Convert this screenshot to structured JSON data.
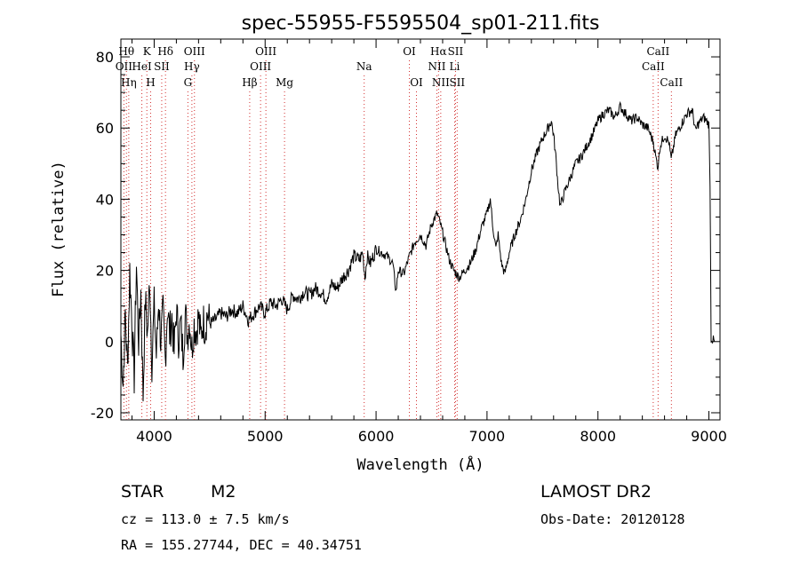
{
  "chart_data": {
    "type": "line",
    "title": "spec-55955-F5595504_sp01-211.fits",
    "xlabel": "Wavelength (Å)",
    "ylabel": "Flux (relative)",
    "xlim": [
      3700,
      9100
    ],
    "ylim": [
      -22,
      85
    ],
    "x_ticks": [
      4000,
      5000,
      6000,
      7000,
      8000,
      9000
    ],
    "y_ticks": [
      -20,
      0,
      20,
      40,
      60,
      80
    ],
    "grid": false,
    "series": [
      {
        "values": [
          [
            3700,
            2
          ],
          [
            3720,
            -12
          ],
          [
            3740,
            8
          ],
          [
            3760,
            -8
          ],
          [
            3780,
            20
          ],
          [
            3800,
            5
          ],
          [
            3820,
            -10
          ],
          [
            3840,
            22
          ],
          [
            3860,
            0
          ],
          [
            3880,
            14
          ],
          [
            3900,
            -15
          ],
          [
            3920,
            12
          ],
          [
            3940,
            2
          ],
          [
            3960,
            18
          ],
          [
            3980,
            -6
          ],
          [
            4000,
            10
          ],
          [
            4020,
            -4
          ],
          [
            4040,
            12
          ],
          [
            4060,
            0
          ],
          [
            4080,
            8
          ],
          [
            4100,
            -5
          ],
          [
            4120,
            10
          ],
          [
            4140,
            2
          ],
          [
            4160,
            7
          ],
          [
            4180,
            -3
          ],
          [
            4200,
            9
          ],
          [
            4220,
            1
          ],
          [
            4240,
            5
          ],
          [
            4260,
            -4
          ],
          [
            4280,
            8
          ],
          [
            4300,
            2
          ],
          [
            4320,
            6
          ],
          [
            4340,
            -2
          ],
          [
            4360,
            5
          ],
          [
            4380,
            3
          ],
          [
            4400,
            7
          ],
          [
            4420,
            1
          ],
          [
            4440,
            6
          ],
          [
            4460,
            4
          ],
          [
            4480,
            8
          ],
          [
            4500,
            5
          ],
          [
            4550,
            6
          ],
          [
            4600,
            8
          ],
          [
            4650,
            7
          ],
          [
            4700,
            9
          ],
          [
            4750,
            8
          ],
          [
            4800,
            10
          ],
          [
            4850,
            6
          ],
          [
            4900,
            8
          ],
          [
            4950,
            10
          ],
          [
            5000,
            8
          ],
          [
            5050,
            11
          ],
          [
            5100,
            10
          ],
          [
            5150,
            12
          ],
          [
            5200,
            9
          ],
          [
            5250,
            13
          ],
          [
            5300,
            12
          ],
          [
            5350,
            14
          ],
          [
            5400,
            13
          ],
          [
            5450,
            15
          ],
          [
            5500,
            14
          ],
          [
            5550,
            12
          ],
          [
            5600,
            16
          ],
          [
            5650,
            15
          ],
          [
            5700,
            18
          ],
          [
            5750,
            20
          ],
          [
            5800,
            24
          ],
          [
            5850,
            23
          ],
          [
            5880,
            25
          ],
          [
            5900,
            18
          ],
          [
            5920,
            24
          ],
          [
            5950,
            22
          ],
          [
            6000,
            26
          ],
          [
            6050,
            25
          ],
          [
            6100,
            24
          ],
          [
            6150,
            22
          ],
          [
            6180,
            14
          ],
          [
            6200,
            20
          ],
          [
            6250,
            19
          ],
          [
            6300,
            24
          ],
          [
            6350,
            28
          ],
          [
            6400,
            30
          ],
          [
            6450,
            27
          ],
          [
            6500,
            33
          ],
          [
            6550,
            36
          ],
          [
            6580,
            33
          ],
          [
            6620,
            28
          ],
          [
            6660,
            23
          ],
          [
            6700,
            20
          ],
          [
            6750,
            18
          ],
          [
            6800,
            20
          ],
          [
            6850,
            22
          ],
          [
            6900,
            26
          ],
          [
            6950,
            32
          ],
          [
            7000,
            36
          ],
          [
            7030,
            40
          ],
          [
            7050,
            33
          ],
          [
            7080,
            26
          ],
          [
            7100,
            30
          ],
          [
            7130,
            22
          ],
          [
            7160,
            19
          ],
          [
            7200,
            25
          ],
          [
            7250,
            30
          ],
          [
            7300,
            34
          ],
          [
            7350,
            40
          ],
          [
            7400,
            48
          ],
          [
            7450,
            53
          ],
          [
            7500,
            57
          ],
          [
            7550,
            60
          ],
          [
            7580,
            62
          ],
          [
            7600,
            58
          ],
          [
            7620,
            52
          ],
          [
            7640,
            44
          ],
          [
            7660,
            38
          ],
          [
            7700,
            42
          ],
          [
            7750,
            46
          ],
          [
            7800,
            50
          ],
          [
            7850,
            52
          ],
          [
            7900,
            55
          ],
          [
            7950,
            58
          ],
          [
            8000,
            62
          ],
          [
            8050,
            64
          ],
          [
            8100,
            65
          ],
          [
            8150,
            63
          ],
          [
            8200,
            66
          ],
          [
            8250,
            64
          ],
          [
            8300,
            62
          ],
          [
            8350,
            63
          ],
          [
            8400,
            61
          ],
          [
            8450,
            60
          ],
          [
            8500,
            56
          ],
          [
            8520,
            52
          ],
          [
            8540,
            49
          ],
          [
            8560,
            55
          ],
          [
            8600,
            58
          ],
          [
            8640,
            56
          ],
          [
            8660,
            51
          ],
          [
            8700,
            58
          ],
          [
            8750,
            61
          ],
          [
            8800,
            64
          ],
          [
            8850,
            65
          ],
          [
            8880,
            59
          ],
          [
            8900,
            61
          ],
          [
            8950,
            63
          ],
          [
            8980,
            62
          ],
          [
            9000,
            61
          ],
          [
            9010,
            45
          ],
          [
            9020,
            1
          ],
          [
            9050,
            0
          ]
        ]
      }
    ],
    "line_markers": [
      {
        "w": 3727,
        "labels": [
          "OII"
        ],
        "row": 1
      },
      {
        "w": 3750,
        "labels": [
          "Hθ"
        ],
        "row": 0
      },
      {
        "w": 3771,
        "labels": [
          "Hη"
        ],
        "row": 2
      },
      {
        "w": 3889,
        "labels": [
          "HeI"
        ],
        "row": 1
      },
      {
        "w": 3934,
        "labels": [
          "K"
        ],
        "row": 0
      },
      {
        "w": 3968,
        "labels": [
          "H"
        ],
        "row": 2
      },
      {
        "w": 4068,
        "labels": [
          "SII"
        ],
        "row": 1
      },
      {
        "w": 4102,
        "labels": [
          "Hδ"
        ],
        "row": 0
      },
      {
        "w": 4304,
        "labels": [
          "G"
        ],
        "row": 2
      },
      {
        "w": 4340,
        "labels": [
          "Hγ"
        ],
        "row": 1
      },
      {
        "w": 4363,
        "labels": [
          "OIII"
        ],
        "row": 0
      },
      {
        "w": 4861,
        "labels": [
          "Hβ"
        ],
        "row": 2
      },
      {
        "w": 4959,
        "labels": [
          "OIII"
        ],
        "row": 1
      },
      {
        "w": 5007,
        "labels": [
          "OIII"
        ],
        "row": 0
      },
      {
        "w": 5175,
        "labels": [
          "Mg"
        ],
        "row": 2
      },
      {
        "w": 5893,
        "labels": [
          "Na"
        ],
        "row": 1
      },
      {
        "w": 6300,
        "labels": [
          "OI"
        ],
        "row": 0
      },
      {
        "w": 6364,
        "labels": [
          "OI"
        ],
        "row": 2
      },
      {
        "w": 6548,
        "labels": [
          "NII"
        ],
        "row": 1
      },
      {
        "w": 6563,
        "labels": [
          "Hα"
        ],
        "row": 0
      },
      {
        "w": 6583,
        "labels": [
          "NII"
        ],
        "row": 2
      },
      {
        "w": 6708,
        "labels": [
          "Li"
        ],
        "row": 1
      },
      {
        "w": 6716,
        "labels": [
          "SII"
        ],
        "row": 0
      },
      {
        "w": 6731,
        "labels": [
          "SII"
        ],
        "row": 2
      },
      {
        "w": 8498,
        "labels": [
          "CaII"
        ],
        "row": 1
      },
      {
        "w": 8542,
        "labels": [
          "CaII"
        ],
        "row": 0
      },
      {
        "w": 8662,
        "labels": [
          "CaII"
        ],
        "row": 2
      }
    ],
    "line_color": "#d33030"
  },
  "info": {
    "object_class": "STAR",
    "subclass": "M2",
    "survey": "LAMOST DR2",
    "cz": "cz = 113.0 ± 7.5 km/s",
    "obs_date": "Obs-Date: 20120128",
    "coords": "RA = 155.27744, DEC =  40.34751"
  }
}
